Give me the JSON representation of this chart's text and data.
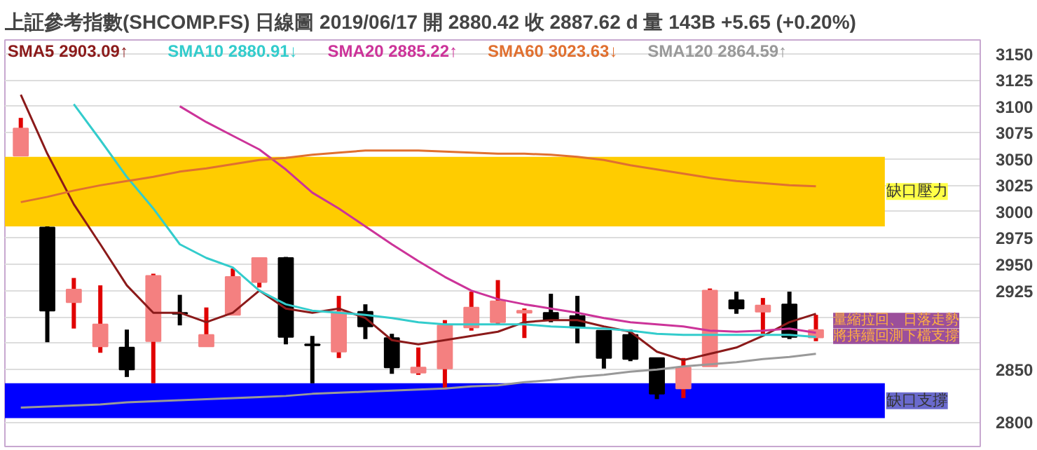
{
  "chart_data": {
    "type": "candlestick",
    "title": "上証參考指數(SHCOMP.FS)",
    "subtitle": "日線圖 2019/06/17 開 2880.42 收 2887.62 d 量 143B +5.65 (+0.20%)",
    "categories": [
      null,
      null,
      null,
      null,
      null,
      null,
      null,
      null,
      null,
      null,
      null,
      null,
      null,
      null,
      null,
      null,
      null,
      null,
      null,
      null,
      null,
      null,
      null,
      null,
      null,
      null,
      null,
      null,
      null,
      null,
      null
    ],
    "ohlc": [
      [
        3053,
        3089,
        3053,
        3079
      ],
      [
        2985,
        2986,
        2876,
        2906
      ],
      [
        2914,
        2937,
        2889,
        2926
      ],
      [
        2872,
        2930,
        2866,
        2893
      ],
      [
        2871,
        2888,
        2843,
        2850
      ],
      [
        2877,
        2941,
        2837,
        2939
      ],
      [
        2904,
        2921,
        2892,
        2903
      ],
      [
        2872,
        2909,
        2872,
        2883
      ],
      [
        2902,
        2946,
        2902,
        2938
      ],
      [
        2933,
        2956,
        2928,
        2956
      ],
      [
        2956,
        2957,
        2874,
        2881
      ],
      [
        2874,
        2882,
        2837,
        2873
      ],
      [
        2867,
        2920,
        2861,
        2905
      ],
      [
        2905,
        2912,
        2879,
        2891
      ],
      [
        2880,
        2884,
        2846,
        2852
      ],
      [
        2847,
        2871,
        2845,
        2852
      ],
      [
        2851,
        2897,
        2831,
        2892
      ],
      [
        2890,
        2924,
        2887,
        2909
      ],
      [
        2895,
        2935,
        2893,
        2915
      ],
      [
        2904,
        2908,
        2880,
        2906
      ],
      [
        2904,
        2922,
        2895,
        2897
      ],
      [
        2901,
        2920,
        2875,
        2890
      ],
      [
        2887,
        2887,
        2851,
        2861
      ],
      [
        2883,
        2888,
        2858,
        2860
      ],
      [
        2861,
        2861,
        2822,
        2827
      ],
      [
        2832,
        2861,
        2823,
        2852
      ],
      [
        2853,
        2927,
        2853,
        2925
      ],
      [
        2916,
        2924,
        2903,
        2908
      ],
      [
        2905,
        2918,
        2884,
        2911
      ],
      [
        2912,
        2924,
        2879,
        2881
      ],
      [
        2880.42,
        2902,
        2877,
        2887.62
      ]
    ],
    "colors": [
      "#f48080",
      "#000000",
      "#f48080",
      "#f48080",
      "#000000",
      "#f48080",
      "#000000",
      "#f48080",
      "#f48080",
      "#f48080",
      "#000000",
      "#000000",
      "#f48080",
      "#000000",
      "#000000",
      "#f48080",
      "#f48080",
      "#f48080",
      "#f48080",
      "#f48080",
      "#000000",
      "#000000",
      "#000000",
      "#000000",
      "#000000",
      "#f48080",
      "#f48080",
      "#000000",
      "#f48080",
      "#000000",
      "#f48080"
    ],
    "series": [
      {
        "name": "SMA5 2903.09↑",
        "type": "line",
        "color": "#8b1a1a",
        "values": [
          3111,
          3055,
          3007,
          2969,
          2930,
          2904,
          2904,
          2895,
          2904,
          2925,
          2908,
          2904,
          2908,
          2899,
          2878,
          2874,
          2878,
          2882,
          2886,
          2895,
          2897,
          2897,
          2891,
          2886,
          2867,
          2859,
          2865,
          2871,
          2882,
          2895,
          2903
        ]
      },
      {
        "name": "SMA10 2880.91↓",
        "type": "line",
        "color": "#33cccc",
        "values": [
          null,
          null,
          3102,
          3068,
          3033,
          3003,
          2969,
          2956,
          2947,
          2925,
          2912,
          2906,
          2904,
          2902,
          2899,
          2895,
          2893,
          2893,
          2893,
          2893,
          2891,
          2890,
          2889,
          2887,
          2884,
          2883,
          2883,
          2883,
          2883,
          2883,
          2881
        ]
      },
      {
        "name": "SMA20 2885.22↑",
        "type": "line",
        "color": "#cc3399",
        "values": [
          null,
          null,
          null,
          null,
          null,
          null,
          3100,
          3085,
          3072,
          3059,
          3040,
          3018,
          3003,
          2986,
          2969,
          2953,
          2938,
          2925,
          2917,
          2912,
          2908,
          2904,
          2899,
          2895,
          2893,
          2891,
          2887,
          2886,
          2887,
          2889,
          2885
        ]
      },
      {
        "name": "SMA60 3023.63↓",
        "type": "line",
        "color": "#e07030",
        "values": [
          3009,
          3014,
          3020,
          3025,
          3029,
          3033,
          3038,
          3041,
          3045,
          3049,
          3051,
          3054,
          3056,
          3058,
          3058,
          3058,
          3057,
          3056,
          3055,
          3055,
          3054,
          3052,
          3049,
          3044,
          3040,
          3036,
          3032,
          3029,
          3027,
          3025,
          3024
        ]
      },
      {
        "name": "SMA120 2864.59↑",
        "type": "line",
        "color": "#999999",
        "values": [
          2814,
          2815,
          2816,
          2817,
          2819,
          2820,
          2821,
          2822,
          2823,
          2824,
          2825,
          2827,
          2828,
          2829,
          2830,
          2831,
          2832,
          2834,
          2835,
          2838,
          2840,
          2843,
          2845,
          2848,
          2850,
          2853,
          2855,
          2857,
          2860,
          2862,
          2865
        ]
      }
    ],
    "bands": [
      {
        "axis": "y",
        "from": 2986,
        "to": 3052,
        "label": "缺口壓力",
        "color": "#ffcc00"
      },
      {
        "axis": "y",
        "from": 2804,
        "to": 2837,
        "label": "缺口支撐",
        "color": "#0000ff"
      }
    ],
    "annotations": [
      "量縮拉回、日落走勢",
      "將持續回測下檔支撐"
    ],
    "ylim": [
      2777,
      3163
    ],
    "yticks": [
      2800,
      2850,
      {
        "value": 2875,
        "label": null
      },
      {
        "value": 2900,
        "label": null
      },
      2925,
      2950,
      2975,
      3000,
      3025,
      3050,
      3075,
      3100,
      3125,
      3150
    ],
    "grid": "y",
    "legend": "top"
  }
}
